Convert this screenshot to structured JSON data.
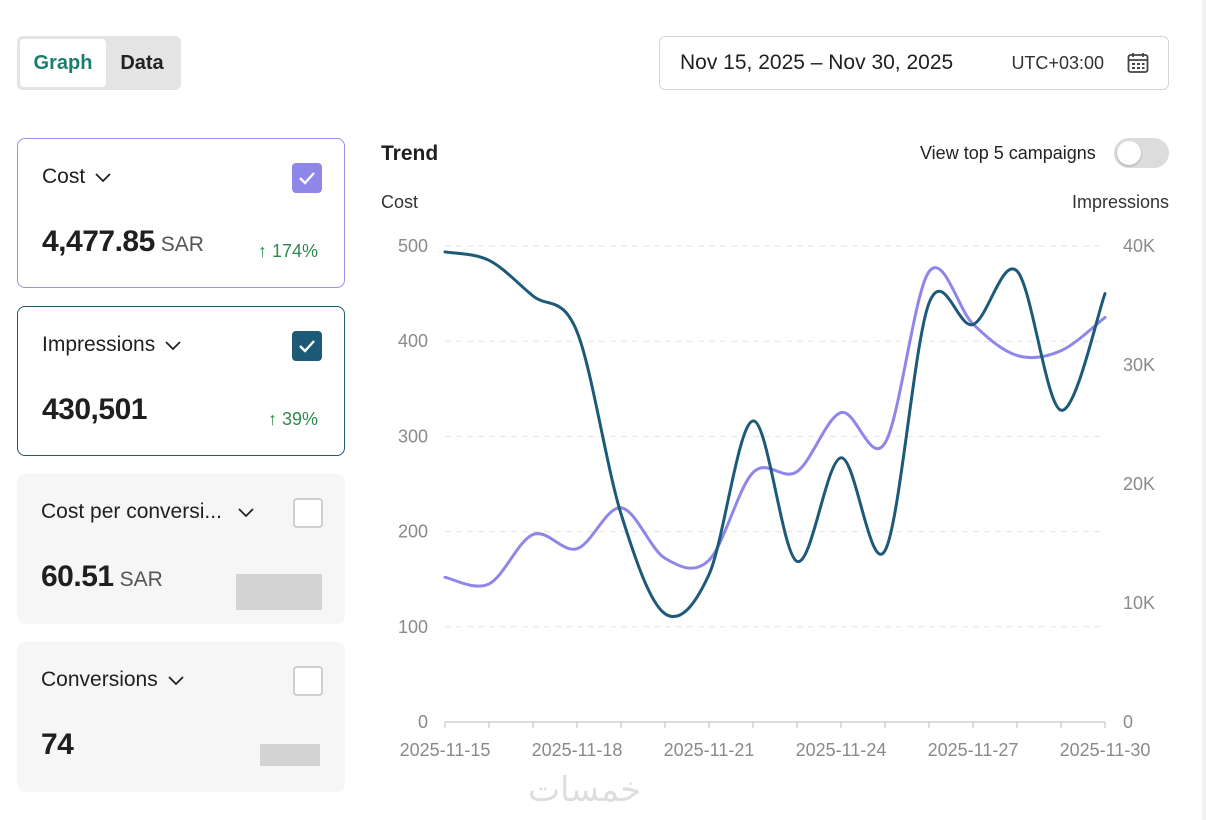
{
  "view_toggle": {
    "graph": "Graph",
    "data": "Data"
  },
  "date_range": {
    "text": "Nov 15, 2025 – Nov 30, 2025",
    "timezone": "UTC+03:00",
    "icon": "calendar-icon"
  },
  "cards": {
    "cost": {
      "label": "Cost",
      "value": "4,477.85",
      "unit": "SAR",
      "change": "↑ 174%",
      "checked": true,
      "color": "#8f86ea"
    },
    "impressions": {
      "label": "Impressions",
      "value": "430,501",
      "change": "↑ 39%",
      "checked": true,
      "color": "#1c5a78"
    },
    "cpc": {
      "label": "Cost per conversi...",
      "value": "60.51",
      "unit": "SAR",
      "checked": false
    },
    "conversions": {
      "label": "Conversions",
      "value": "74",
      "checked": false
    }
  },
  "trend": {
    "title": "Trend",
    "top5_label": "View top 5 campaigns",
    "top5_enabled": false
  },
  "watermark": "خمسات",
  "chart_data": {
    "type": "line",
    "x": [
      "2025-11-15",
      "2025-11-16",
      "2025-11-17",
      "2025-11-18",
      "2025-11-19",
      "2025-11-20",
      "2025-11-21",
      "2025-11-22",
      "2025-11-23",
      "2025-11-24",
      "2025-11-25",
      "2025-11-26",
      "2025-11-27",
      "2025-11-28",
      "2025-11-29",
      "2025-11-30"
    ],
    "x_tick_labels": [
      "2025-11-15",
      "2025-11-18",
      "2025-11-21",
      "2025-11-24",
      "2025-11-27",
      "2025-11-30"
    ],
    "ylabel_left": "Cost",
    "ylabel_right": "Impressions",
    "ylim_left": [
      0,
      500
    ],
    "ylim_right": [
      0,
      40000
    ],
    "yticks_left": [
      "0",
      "100",
      "200",
      "300",
      "400",
      "500"
    ],
    "yticks_right": [
      "0",
      "10K",
      "20K",
      "30K",
      "40K"
    ],
    "grid": true,
    "series": [
      {
        "name": "Cost",
        "axis": "left",
        "color": "#8f86ea",
        "values": [
          152,
          145,
          197,
          182,
          225,
          172,
          170,
          262,
          263,
          325,
          293,
          473,
          418,
          385,
          390,
          425
        ]
      },
      {
        "name": "Impressions",
        "axis": "right",
        "color": "#1c5a78",
        "values": [
          39500,
          38800,
          35800,
          32800,
          17500,
          9100,
          12400,
          25300,
          13500,
          22200,
          14400,
          35200,
          33400,
          37900,
          26200,
          36000
        ]
      }
    ]
  }
}
